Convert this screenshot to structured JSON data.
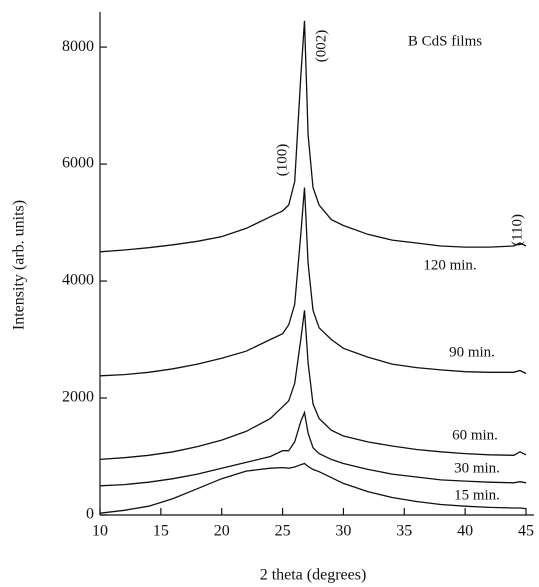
{
  "chart_data": {
    "type": "line",
    "xlabel": "2 theta (degrees)",
    "ylabel": "Intensity (arb. units)",
    "legend_title": "B CdS films",
    "annotations": [
      "(100)",
      "(002)",
      "(110)"
    ],
    "xlim": [
      10,
      45
    ],
    "ylim": [
      0,
      8600
    ],
    "xticks": [
      10,
      15,
      20,
      25,
      30,
      35,
      40,
      45
    ],
    "yticks": [
      0,
      2000,
      4000,
      6000,
      8000
    ],
    "x": [
      10,
      12,
      14,
      16,
      18,
      20,
      22,
      24,
      25,
      25.5,
      26,
      26.5,
      26.8,
      27.1,
      27.5,
      28,
      29,
      30,
      32,
      34,
      36,
      38,
      40,
      42,
      44,
      44.5,
      45
    ],
    "series": [
      {
        "name": "120 min.",
        "color": "#111111",
        "values": [
          4500,
          4530,
          4570,
          4620,
          4680,
          4760,
          4900,
          5100,
          5200,
          5300,
          5700,
          7500,
          8450,
          6500,
          5600,
          5300,
          5050,
          4950,
          4800,
          4700,
          4650,
          4600,
          4580,
          4580,
          4600,
          4650,
          4600
        ]
      },
      {
        "name": "90 min.",
        "color": "#111111",
        "values": [
          2380,
          2400,
          2440,
          2500,
          2580,
          2680,
          2800,
          3000,
          3100,
          3250,
          3600,
          4800,
          5600,
          4300,
          3500,
          3200,
          3000,
          2850,
          2700,
          2580,
          2520,
          2480,
          2450,
          2440,
          2440,
          2470,
          2420
        ]
      },
      {
        "name": "60 min.",
        "color": "#111111",
        "values": [
          950,
          980,
          1020,
          1080,
          1170,
          1280,
          1430,
          1650,
          1850,
          1950,
          2250,
          3000,
          3500,
          2600,
          1900,
          1650,
          1450,
          1350,
          1250,
          1180,
          1120,
          1080,
          1050,
          1030,
          1020,
          1080,
          1030
        ]
      },
      {
        "name": "30 min.",
        "color": "#111111",
        "values": [
          500,
          520,
          560,
          620,
          700,
          800,
          900,
          1000,
          1100,
          1100,
          1250,
          1600,
          1750,
          1400,
          1150,
          1050,
          950,
          880,
          780,
          700,
          650,
          600,
          580,
          560,
          550,
          570,
          550
        ]
      },
      {
        "name": "15 min.",
        "color": "#111111",
        "values": [
          30,
          80,
          150,
          280,
          450,
          620,
          750,
          800,
          810,
          800,
          820,
          860,
          880,
          830,
          780,
          740,
          640,
          540,
          400,
          300,
          230,
          180,
          150,
          130,
          120,
          120,
          110
        ]
      }
    ]
  }
}
